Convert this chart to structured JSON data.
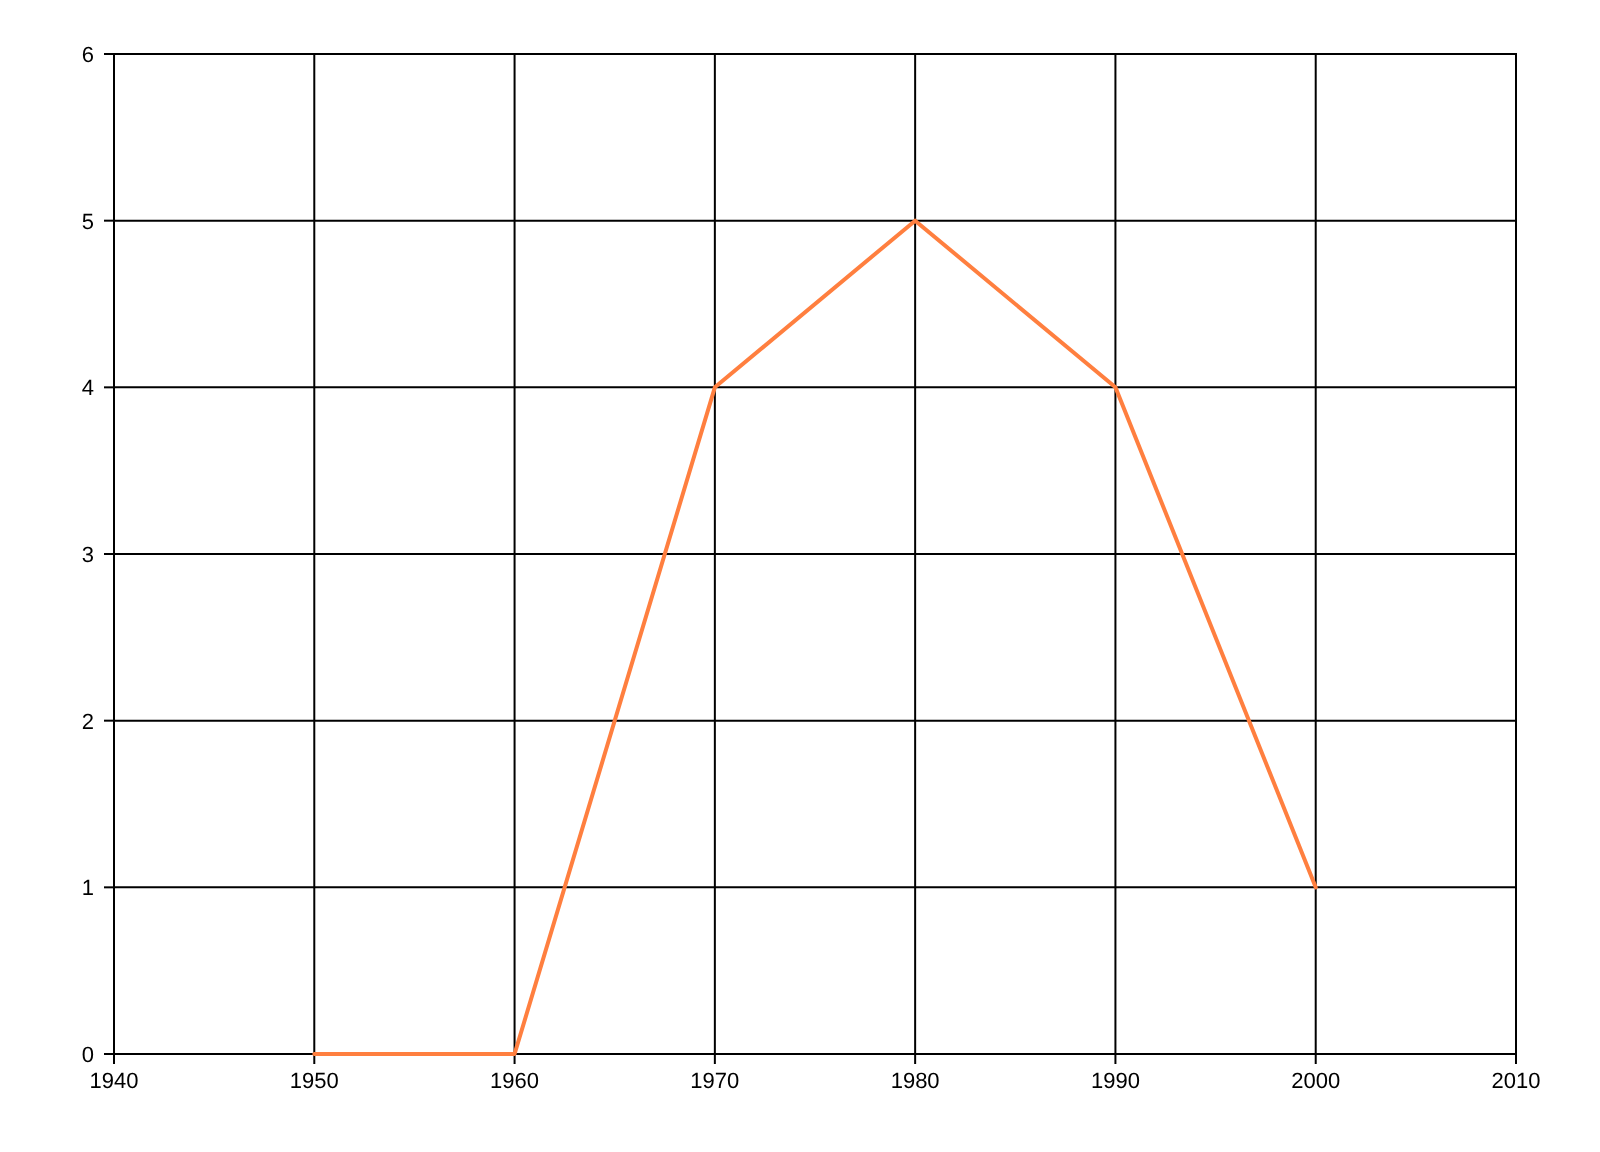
{
  "chart_data": {
    "type": "line",
    "x": [
      1950,
      1960,
      1970,
      1980,
      1990,
      2000
    ],
    "series": [
      {
        "color": "#ff7f3f",
        "values": [
          0,
          0,
          4,
          5,
          4,
          1
        ]
      }
    ],
    "xlim": [
      1940,
      2010
    ],
    "xticks": [
      1940,
      1950,
      1960,
      1970,
      1980,
      1990,
      2000,
      2010
    ],
    "ylim": [
      0,
      6
    ],
    "yticks": [
      0,
      1,
      2,
      3,
      4,
      5,
      6
    ],
    "grid": true,
    "marker": "none",
    "line_style": "solid"
  }
}
